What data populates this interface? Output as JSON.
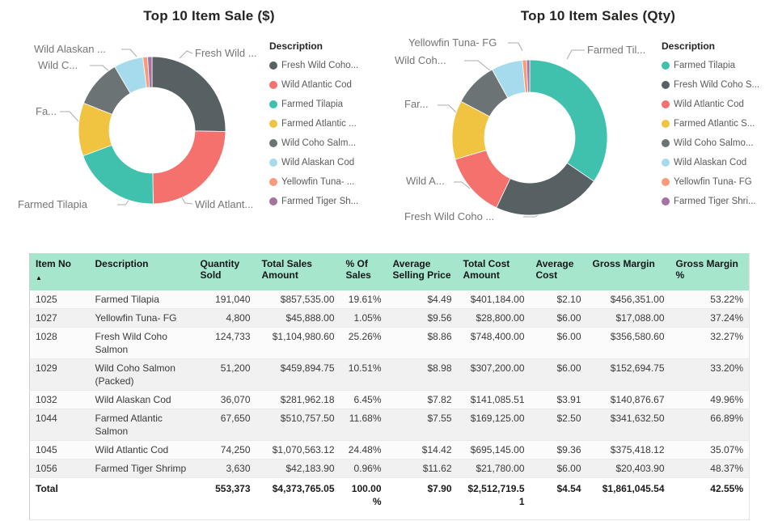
{
  "chart_data": [
    {
      "type": "donut",
      "title": "Top 10 Item Sale ($)",
      "legend_title": "Description",
      "legend_position": "right",
      "slices": [
        {
          "label": "Fresh Wild Coho...",
          "callout": "Fresh Wild ...",
          "value": 1104980.6,
          "pct": "25.26%",
          "color": "#576062"
        },
        {
          "label": "Wild Atlantic Cod",
          "callout": "Wild Atlant...",
          "value": 1070563.12,
          "pct": "24.48%",
          "color": "#f4716d"
        },
        {
          "label": "Farmed Tilapia",
          "callout": "Farmed Tilapia",
          "value": 857535.0,
          "pct": "19.61%",
          "color": "#3fc1ae"
        },
        {
          "label": "Farmed Atlantic ...",
          "callout": "Fa...",
          "value": 510757.5,
          "pct": "11.68%",
          "color": "#f0c440"
        },
        {
          "label": "Wild Coho Salm...",
          "callout": "Wild C...",
          "value": 459894.75,
          "pct": "10.51%",
          "color": "#6c7374"
        },
        {
          "label": "Wild Alaskan Cod",
          "callout": "Wild Alaskan ...",
          "value": 281962.18,
          "pct": "6.45%",
          "color": "#a6dbee"
        },
        {
          "label": "Yellowfin Tuna- ...",
          "callout": "",
          "value": 45888.0,
          "pct": "1.05%",
          "color": "#f99b78"
        },
        {
          "label": "Farmed Tiger Sh...",
          "callout": "",
          "value": 42183.9,
          "pct": "0.96%",
          "color": "#a672a0"
        }
      ]
    },
    {
      "type": "donut",
      "title": "Top 10 Item Sales (Qty)",
      "legend_title": "Description",
      "legend_position": "right",
      "slices": [
        {
          "label": "Farmed Tilapia",
          "callout": "Farmed Til...",
          "value": 191040,
          "color": "#3fc1ae"
        },
        {
          "label": "Fresh Wild Coho S...",
          "callout": "Fresh Wild Coho ...",
          "value": 124733,
          "color": "#576062"
        },
        {
          "label": "Wild Atlantic Cod",
          "callout": "Wild A...",
          "value": 74250,
          "color": "#f4716d"
        },
        {
          "label": "Farmed Atlantic S...",
          "callout": "Far...",
          "value": 67650,
          "color": "#f0c440"
        },
        {
          "label": "Wild Coho Salmo...",
          "callout": "Wild Coh...",
          "value": 51200,
          "color": "#6c7374"
        },
        {
          "label": "Wild Alaskan Cod",
          "callout": "",
          "value": 36070,
          "color": "#a6dbee"
        },
        {
          "label": "Yellowfin Tuna- FG",
          "callout": "Yellowfin Tuna- FG",
          "value": 4800,
          "color": "#f99b78"
        },
        {
          "label": "Farmed Tiger Shri...",
          "callout": "",
          "value": 3630,
          "color": "#a672a0"
        }
      ]
    }
  ],
  "table": {
    "header_bg": "#a6e6cd",
    "sort": {
      "column_index": 0,
      "direction": "ascending",
      "indicator": "▲"
    },
    "columns": [
      "Item No",
      "Description",
      "Quantity Sold",
      "Total Sales Amount",
      "% Of Sales",
      "Average Selling Price",
      "Total Cost Amount",
      "Average Cost",
      "Gross Margin",
      "Gross Margin %"
    ],
    "rows": [
      [
        "1025",
        "Farmed Tilapia",
        "191,040",
        "$857,535.00",
        "19.61%",
        "$4.49",
        "$401,184.00",
        "$2.10",
        "$456,351.00",
        "53.22%"
      ],
      [
        "1027",
        "Yellowfin Tuna- FG",
        "4,800",
        "$45,888.00",
        "1.05%",
        "$9.56",
        "$28,800.00",
        "$6.00",
        "$17,088.00",
        "37.24%"
      ],
      [
        "1028",
        "Fresh Wild Coho Salmon",
        "124,733",
        "$1,104,980.60",
        "25.26%",
        "$8.86",
        "$748,400.00",
        "$6.00",
        "$356,580.60",
        "32.27%"
      ],
      [
        "1029",
        "Wild Coho Salmon (Packed)",
        "51,200",
        "$459,894.75",
        "10.51%",
        "$8.98",
        "$307,200.00",
        "$6.00",
        "$152,694.75",
        "33.20%"
      ],
      [
        "1032",
        "Wild Alaskan Cod",
        "36,070",
        "$281,962.18",
        "6.45%",
        "$7.82",
        "$141,085.51",
        "$3.91",
        "$140,876.67",
        "49.96%"
      ],
      [
        "1044",
        "Farmed Atlantic Salmon",
        "67,650",
        "$510,757.50",
        "11.68%",
        "$7.55",
        "$169,125.00",
        "$2.50",
        "$341,632.50",
        "66.89%"
      ],
      [
        "1045",
        "Wild Atlantic Cod",
        "74,250",
        "$1,070,563.12",
        "24.48%",
        "$14.42",
        "$695,145.00",
        "$9.36",
        "$375,418.12",
        "35.07%"
      ],
      [
        "1056",
        "Farmed Tiger Shrimp",
        "3,630",
        "$42,183.90",
        "0.96%",
        "$11.62",
        "$21,780.00",
        "$6.00",
        "$20,403.90",
        "48.37%"
      ]
    ],
    "total_row": [
      "Total",
      "",
      "553,373",
      "$4,373,765.05",
      "100.00%",
      "$7.90",
      "$2,512,719.51",
      "$4.54",
      "$1,861,045.54",
      "42.55%"
    ]
  }
}
